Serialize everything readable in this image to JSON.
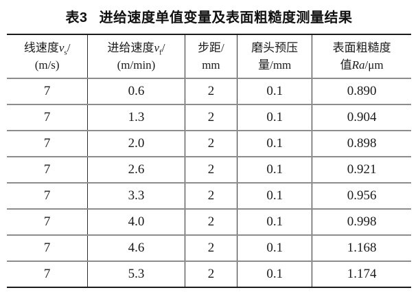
{
  "title": {
    "label": "表3",
    "text": "进给速度单值变量及表面粗糙度测量结果"
  },
  "table": {
    "header": [
      {
        "l1a": "线速度",
        "l1i": "v",
        "l1s": "s",
        "l1b": "/",
        "l2b": "(m/s)"
      },
      {
        "l1a": "进给速度",
        "l1i": "v",
        "l1s": "f",
        "l1b": "/",
        "l2b": "(m/min)"
      },
      {
        "l1a": "步距/",
        "l2b": "mm"
      },
      {
        "l1a": "磨头预压",
        "l2b": "量/mm"
      },
      {
        "l1a": "表面粗糙度",
        "l2a": "值",
        "l2i": "Ra",
        "l2b": "/μm"
      }
    ],
    "rows": [
      [
        "7",
        "0.6",
        "2",
        "0.1",
        "0.890"
      ],
      [
        "7",
        "1.3",
        "2",
        "0.1",
        "0.904"
      ],
      [
        "7",
        "2.0",
        "2",
        "0.1",
        "0.898"
      ],
      [
        "7",
        "2.6",
        "2",
        "0.1",
        "0.921"
      ],
      [
        "7",
        "3.3",
        "2",
        "0.1",
        "0.956"
      ],
      [
        "7",
        "4.0",
        "2",
        "0.1",
        "0.998"
      ],
      [
        "7",
        "4.6",
        "2",
        "0.1",
        "1.168"
      ],
      [
        "7",
        "5.3",
        "2",
        "0.1",
        "1.174"
      ]
    ]
  },
  "colors": {
    "text": "#1a1a1a",
    "black_rule": "#1a1a1a",
    "gray_rule": "#8c8c8c",
    "background": "#ffffff"
  }
}
